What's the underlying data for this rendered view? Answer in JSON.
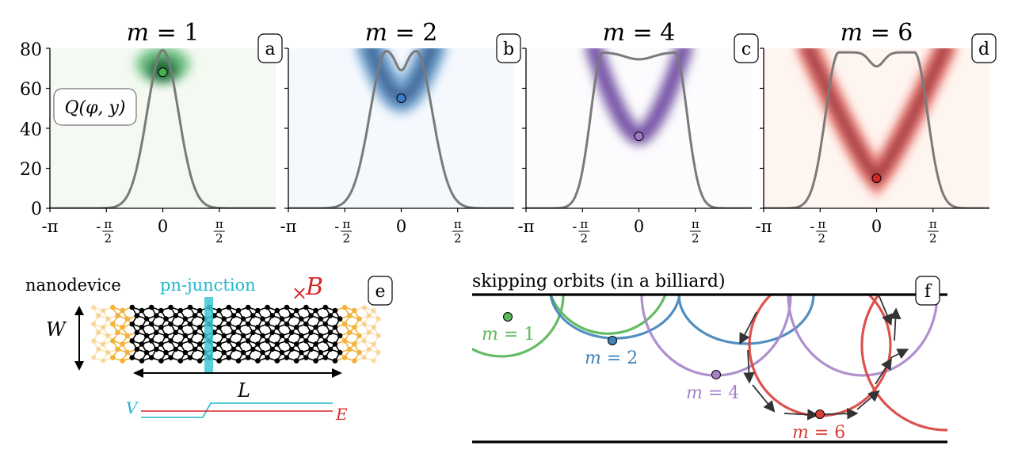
{
  "chart_data": [
    {
      "type": "heatmap",
      "panel_label": "a",
      "title_var": "m",
      "title_value": "1",
      "title": "m = 1",
      "colormap": "green",
      "colors": {
        "peak": "#00441b",
        "mid": "#41ab5d",
        "bg": "#f4faf2"
      },
      "quantity_label": "Q(φ, y)",
      "x_ticks": [
        "-π",
        "-π/2",
        "0",
        "π/2"
      ],
      "y_ticks": [
        "0",
        "20",
        "40",
        "60",
        "80"
      ],
      "xlim": [
        -3.1416,
        3.1416
      ],
      "ylim": [
        0,
        80
      ],
      "curve": {
        "shape": "single-peak",
        "max": 79
      },
      "marker": {
        "x": 0,
        "y": 68,
        "color": "#4caf50"
      }
    },
    {
      "type": "heatmap",
      "panel_label": "b",
      "title_var": "m",
      "title_value": "2",
      "title": "m = 2",
      "colormap": "blue",
      "colors": {
        "peak": "#08306b",
        "mid": "#2171b5",
        "bg": "#f5f9fe"
      },
      "x_ticks": [
        "-π",
        "-π/2",
        "0",
        "π/2"
      ],
      "xlim": [
        -3.1416,
        3.1416
      ],
      "ylim": [
        0,
        80
      ],
      "curve": {
        "shape": "double-peak",
        "max": 79,
        "dip": 69
      },
      "marker": {
        "x": 0,
        "y": 55,
        "color": "#3b7fc4"
      }
    },
    {
      "type": "heatmap",
      "panel_label": "c",
      "title_var": "m",
      "title_value": "4",
      "title": "m = 4",
      "colormap": "purple",
      "colors": {
        "peak": "#3f007d",
        "mid": "#6a51a3",
        "bg": "#fcfbfd"
      },
      "x_ticks": [
        "-π",
        "-π/2",
        "0",
        "π/2"
      ],
      "xlim": [
        -3.1416,
        3.1416
      ],
      "ylim": [
        0,
        80
      ],
      "curve": {
        "shape": "flat-top",
        "max": 78,
        "dip": 75
      },
      "marker": {
        "x": 0,
        "y": 36,
        "color": "#9c79c4"
      }
    },
    {
      "type": "heatmap",
      "panel_label": "d",
      "title_var": "m",
      "title_value": "6",
      "title": "m = 6",
      "colormap": "red",
      "colors": {
        "peak": "#67000d",
        "mid": "#e32f27",
        "bg": "#fff5f0"
      },
      "x_ticks": [
        "-π",
        "-π/2",
        "0",
        "π/2"
      ],
      "xlim": [
        -3.1416,
        3.1416
      ],
      "ylim": [
        0,
        80
      ],
      "curve": {
        "shape": "wide-double-peak",
        "max": 78,
        "dip": 71
      },
      "marker": {
        "x": 0,
        "y": 15,
        "color": "#d62728"
      }
    }
  ],
  "panel_e": {
    "label": "e",
    "title": "nanodevice",
    "junction_label": "pn-junction",
    "field_symbol": "×",
    "field_label": "B",
    "width_label": "W",
    "length_label": "L",
    "potential_label": "V",
    "energy_label": "E",
    "colors": {
      "junction": "#3cc7d4",
      "field": "#d62728",
      "lead": "#f2b33d",
      "lattice": "#000000",
      "energy": "#d62728",
      "potential": "#22b8cc"
    }
  },
  "panel_f": {
    "label": "f",
    "title": "skipping orbits (in a billiard)",
    "orbits": [
      {
        "var": "m",
        "value": "1",
        "color": "#5cb85c"
      },
      {
        "var": "m",
        "value": "2",
        "color": "#3f83b9"
      },
      {
        "var": "m",
        "value": "4",
        "color": "#a683c9"
      },
      {
        "var": "m",
        "value": "6",
        "color": "#d9403a"
      }
    ]
  }
}
